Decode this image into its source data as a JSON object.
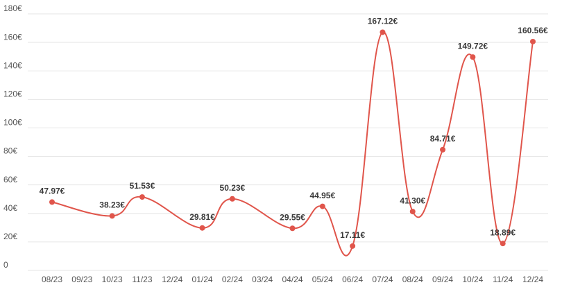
{
  "chart_data": {
    "type": "line",
    "categories": [
      "08/23",
      "09/23",
      "10/23",
      "11/23",
      "12/24",
      "01/24",
      "02/24",
      "03/24",
      "04/24",
      "05/24",
      "06/24",
      "07/24",
      "08/24",
      "09/24",
      "10/24",
      "11/24",
      "12/24"
    ],
    "series": [
      {
        "color": "#e0554b",
        "values": [
          47.97,
          null,
          38.23,
          51.53,
          null,
          29.81,
          50.23,
          null,
          29.55,
          44.95,
          17.11,
          167.12,
          41.3,
          84.71,
          149.72,
          18.89,
          160.56
        ],
        "value_labels": [
          "47.97€",
          null,
          "38.23€",
          "51.53€",
          null,
          "29.81€",
          "50.23€",
          null,
          "29.55€",
          "44.95€",
          "17.11€",
          "167.12€",
          "41.30€",
          "84.71€",
          "149.72€",
          "18.89€",
          "160.56€"
        ]
      }
    ],
    "ylim": [
      0,
      180
    ],
    "yticks": [
      0,
      {
        "value": 20,
        "label": "20€"
      },
      {
        "value": 40,
        "label": "40€"
      },
      {
        "value": 60,
        "label": "60€"
      },
      {
        "value": 80,
        "label": "80€"
      },
      {
        "value": 100,
        "label": "100€"
      },
      {
        "value": 120,
        "label": "120€"
      },
      {
        "value": 140,
        "label": "140€"
      },
      {
        "value": 160,
        "label": "160€"
      },
      {
        "value": 180,
        "label": "180€"
      }
    ],
    "grid": true
  }
}
